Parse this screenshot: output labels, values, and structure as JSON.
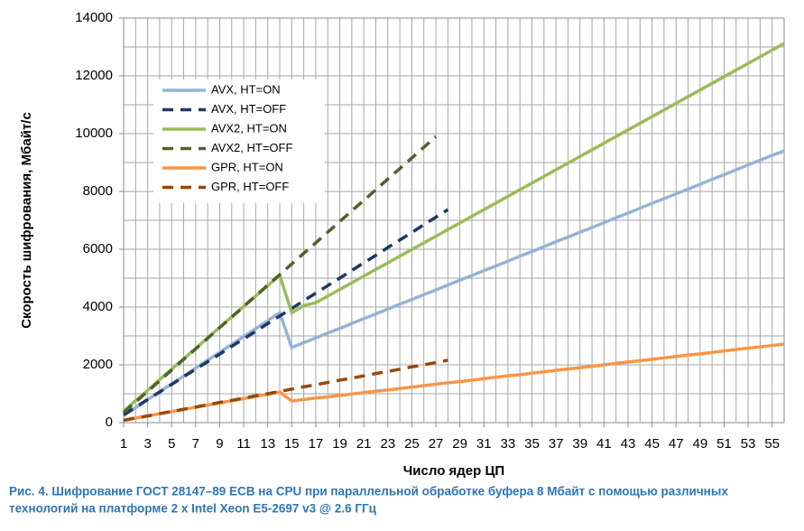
{
  "chart_data": {
    "type": "line",
    "x_label": "Число ядер ЦП",
    "y_label": "Скорость шифрования, Мбайт/с",
    "caption": [
      "Рис. 4. Шифрование ГОСТ 28147–89 ECB на CPU при параллельной обработке буфера 8 Мбайт с помощью различных",
      "технологий на платформе 2 x Intel Xeon E5-2697 v3 @ 2.6 ГГц"
    ],
    "x": [
      1,
      2,
      3,
      4,
      5,
      6,
      7,
      8,
      9,
      10,
      11,
      12,
      13,
      14,
      15,
      16,
      17,
      18,
      19,
      20,
      21,
      22,
      23,
      24,
      25,
      26,
      27,
      28,
      29,
      30,
      31,
      32,
      33,
      34,
      35,
      36,
      37,
      38,
      39,
      40,
      41,
      42,
      43,
      44,
      45,
      46,
      47,
      48,
      49,
      50,
      51,
      52,
      53,
      54,
      55,
      56
    ],
    "xlim": [
      1,
      56
    ],
    "xticks": [
      1,
      3,
      5,
      7,
      9,
      11,
      13,
      15,
      17,
      19,
      21,
      23,
      25,
      27,
      29,
      31,
      33,
      35,
      37,
      39,
      41,
      43,
      45,
      47,
      49,
      51,
      53,
      55
    ],
    "ylim": [
      0,
      14000
    ],
    "yticks": [
      0,
      2000,
      4000,
      6000,
      8000,
      10000,
      12000,
      14000
    ],
    "y_minor_ticks": [
      1000,
      3000,
      5000,
      7000,
      9000,
      11000,
      13000
    ],
    "grid": true,
    "legend": "upper-left",
    "series": [
      {
        "name": "AVX, HT=ON",
        "color": "#95b3d7",
        "dashed": false,
        "values": [
          250,
          520,
          800,
          1070,
          1340,
          1610,
          1890,
          2160,
          2430,
          2710,
          2980,
          3250,
          3530,
          3800,
          2600,
          2770,
          2930,
          3100,
          3260,
          3430,
          3600,
          3760,
          3930,
          4100,
          4260,
          4430,
          4590,
          4760,
          4930,
          5090,
          5260,
          5420,
          5590,
          5760,
          5920,
          6090,
          6260,
          6420,
          6590,
          6750,
          6920,
          7090,
          7250,
          7420,
          7590,
          7750,
          7920,
          8080,
          8250,
          8420,
          8580,
          8750,
          8920,
          9080,
          9250,
          9400
        ]
      },
      {
        "name": "AVX, HT=OFF",
        "color": "#1f3864",
        "dashed": true,
        "values": [
          270,
          530,
          800,
          1060,
          1320,
          1590,
          1850,
          2110,
          2370,
          2640,
          2900,
          3160,
          3430,
          3690,
          3950,
          4220,
          4480,
          4740,
          5000,
          5270,
          5530,
          5790,
          6060,
          6320,
          6580,
          6850,
          7110,
          7370,
          null,
          null,
          null,
          null,
          null,
          null,
          null,
          null,
          null,
          null,
          null,
          null,
          null,
          null,
          null,
          null,
          null,
          null,
          null,
          null,
          null,
          null,
          null,
          null,
          null,
          null,
          null,
          null
        ]
      },
      {
        "name": "AVX2, HT=ON",
        "color": "#9bbb59",
        "dashed": false,
        "values": [
          400,
          760,
          1120,
          1490,
          1850,
          2210,
          2570,
          2930,
          3300,
          3660,
          4020,
          4380,
          4740,
          5100,
          3800,
          4050,
          4150,
          4380,
          4610,
          4840,
          5070,
          5300,
          5530,
          5760,
          5990,
          6220,
          6450,
          6680,
          6910,
          7140,
          7370,
          7600,
          7830,
          8060,
          8290,
          8520,
          8750,
          8980,
          9210,
          9440,
          9670,
          9900,
          10130,
          10360,
          10590,
          10820,
          11050,
          11280,
          11510,
          11740,
          11970,
          12200,
          12430,
          12660,
          12890,
          13120
        ]
      },
      {
        "name": "AVX2, HT=OFF",
        "color": "#4f6228",
        "dashed": true,
        "values": [
          350,
          720,
          1080,
          1450,
          1820,
          2190,
          2550,
          2920,
          3290,
          3650,
          4020,
          4390,
          4760,
          5120,
          5490,
          5860,
          6220,
          6590,
          6960,
          7330,
          7690,
          8060,
          8430,
          8790,
          9160,
          9530,
          9900,
          null,
          null,
          null,
          null,
          null,
          null,
          null,
          null,
          null,
          null,
          null,
          null,
          null,
          null,
          null,
          null,
          null,
          null,
          null,
          null,
          null,
          null,
          null,
          null,
          null,
          null,
          null,
          null,
          null
        ]
      },
      {
        "name": "GPR, HT=ON",
        "color": "#f79646",
        "dashed": false,
        "values": [
          80,
          160,
          230,
          310,
          380,
          460,
          530,
          610,
          680,
          760,
          830,
          910,
          980,
          1060,
          750,
          800,
          850,
          890,
          940,
          990,
          1040,
          1090,
          1130,
          1180,
          1230,
          1280,
          1330,
          1380,
          1420,
          1470,
          1520,
          1570,
          1620,
          1660,
          1710,
          1760,
          1810,
          1860,
          1900,
          1950,
          2000,
          2050,
          2100,
          2140,
          2190,
          2240,
          2290,
          2340,
          2380,
          2430,
          2480,
          2530,
          2580,
          2620,
          2670,
          2720
        ]
      },
      {
        "name": "GPR, HT=OFF",
        "color": "#984807",
        "dashed": true,
        "values": [
          80,
          160,
          230,
          310,
          390,
          460,
          540,
          620,
          700,
          770,
          850,
          930,
          1000,
          1080,
          1160,
          1240,
          1310,
          1390,
          1470,
          1540,
          1620,
          1700,
          1770,
          1850,
          1930,
          2000,
          2080,
          2160,
          null,
          null,
          null,
          null,
          null,
          null,
          null,
          null,
          null,
          null,
          null,
          null,
          null,
          null,
          null,
          null,
          null,
          null,
          null,
          null,
          null,
          null,
          null,
          null,
          null,
          null,
          null,
          null
        ]
      }
    ]
  }
}
